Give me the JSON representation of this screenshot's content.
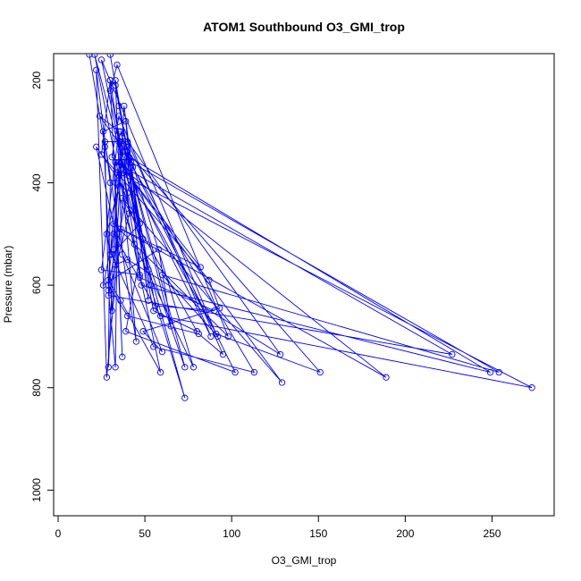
{
  "chart_data": {
    "type": "line",
    "title": "ATOM1 Southbound O3_GMI_trop",
    "xlabel": "O3_GMI_trop",
    "ylabel": "Pressure (mbar)",
    "xlim": [
      0,
      280
    ],
    "ylim": [
      1050,
      150
    ],
    "y_reversed": true,
    "x_ticks": [
      0,
      50,
      100,
      150,
      200,
      250
    ],
    "x_tick_labels": [
      "0",
      "50",
      "100",
      "150",
      "200",
      "250"
    ],
    "y_ticks": [
      200,
      400,
      600,
      800,
      1000
    ],
    "y_tick_labels": [
      "200",
      "400",
      "600",
      "800",
      "1000"
    ],
    "grid": false,
    "legend": "none",
    "series_color": "#0000ff",
    "marker": "open-circle",
    "series": [
      {
        "points": [
          [
            18,
            150
          ],
          [
            27,
            330
          ],
          [
            29,
            610
          ],
          [
            33,
            760
          ],
          [
            34,
            500
          ],
          [
            38,
            250
          ],
          [
            52,
            630
          ],
          [
            41,
            350
          ],
          [
            24,
            270
          ],
          [
            35,
            300
          ],
          [
            25,
            570
          ],
          [
            47,
            580
          ],
          [
            39,
            280
          ],
          [
            26,
            300
          ],
          [
            31,
            650
          ],
          [
            37,
            340
          ],
          [
            29,
            590
          ],
          [
            36,
            630
          ],
          [
            59,
            770
          ],
          [
            34,
            370
          ],
          [
            21,
            150
          ],
          [
            49,
            510
          ],
          [
            39,
            690
          ],
          [
            102,
            770
          ],
          [
            36,
            320
          ],
          [
            32,
            530
          ],
          [
            29,
            760
          ],
          [
            30,
            400
          ],
          [
            22,
            180
          ],
          [
            28,
            780
          ],
          [
            40,
            330
          ],
          [
            78,
            760
          ],
          [
            44,
            520
          ],
          [
            33,
            400
          ],
          [
            37,
            740
          ],
          [
            30,
            200
          ],
          [
            25,
            345
          ],
          [
            87,
            590
          ],
          [
            93,
            645
          ],
          [
            49,
            690
          ],
          [
            60,
            730
          ],
          [
            37,
            540
          ],
          [
            33,
            200
          ],
          [
            47,
            480
          ],
          [
            31,
            540
          ],
          [
            55,
            720
          ],
          [
            113,
            770
          ],
          [
            43,
            370
          ],
          [
            29,
            600
          ],
          [
            40,
            660
          ],
          [
            81,
            695
          ],
          [
            95,
            735
          ],
          [
            40,
            320
          ],
          [
            27,
            320
          ],
          [
            45,
            710
          ],
          [
            35,
            320
          ],
          [
            25,
            160
          ],
          [
            91,
            695
          ],
          [
            151,
            770
          ],
          [
            40,
            340
          ],
          [
            28,
            500
          ],
          [
            30,
            540
          ],
          [
            34,
            380
          ],
          [
            73,
            760
          ],
          [
            40,
            350
          ],
          [
            48,
            600
          ],
          [
            249,
            770
          ],
          [
            36,
            340
          ],
          [
            41,
            460
          ],
          [
            29,
            620
          ],
          [
            227,
            735
          ],
          [
            33,
            360
          ],
          [
            33,
            560
          ],
          [
            40,
            550
          ],
          [
            128,
            735
          ],
          [
            36,
            300
          ],
          [
            65,
            680
          ],
          [
            58,
            530
          ],
          [
            26,
            600
          ],
          [
            32,
            500
          ],
          [
            59,
            660
          ],
          [
            273,
            800
          ],
          [
            34,
            380
          ],
          [
            37,
            360
          ],
          [
            92,
            700
          ],
          [
            60,
            580
          ],
          [
            254,
            770
          ],
          [
            42,
            360
          ],
          [
            37,
            310
          ],
          [
            53,
            600
          ],
          [
            73,
            820
          ],
          [
            40,
            420
          ],
          [
            22,
            330
          ],
          [
            32,
            480
          ],
          [
            98,
            700
          ],
          [
            34,
            170
          ],
          [
            30,
            220
          ],
          [
            55,
            650
          ],
          [
            80,
            690
          ],
          [
            37,
            430
          ],
          [
            129,
            790
          ],
          [
            35,
            360
          ],
          [
            82,
            565
          ],
          [
            36,
            490
          ],
          [
            189,
            780
          ],
          [
            40,
            380
          ],
          [
            31,
            350
          ],
          [
            35,
            270
          ],
          [
            88,
            700
          ],
          [
            38,
            360
          ],
          [
            52,
            570
          ],
          [
            33,
            210
          ],
          [
            30,
            200
          ],
          [
            47,
            585
          ],
          [
            90,
            650
          ],
          [
            56,
            640
          ],
          [
            35,
            250
          ],
          [
            30,
            150
          ]
        ]
      }
    ]
  }
}
